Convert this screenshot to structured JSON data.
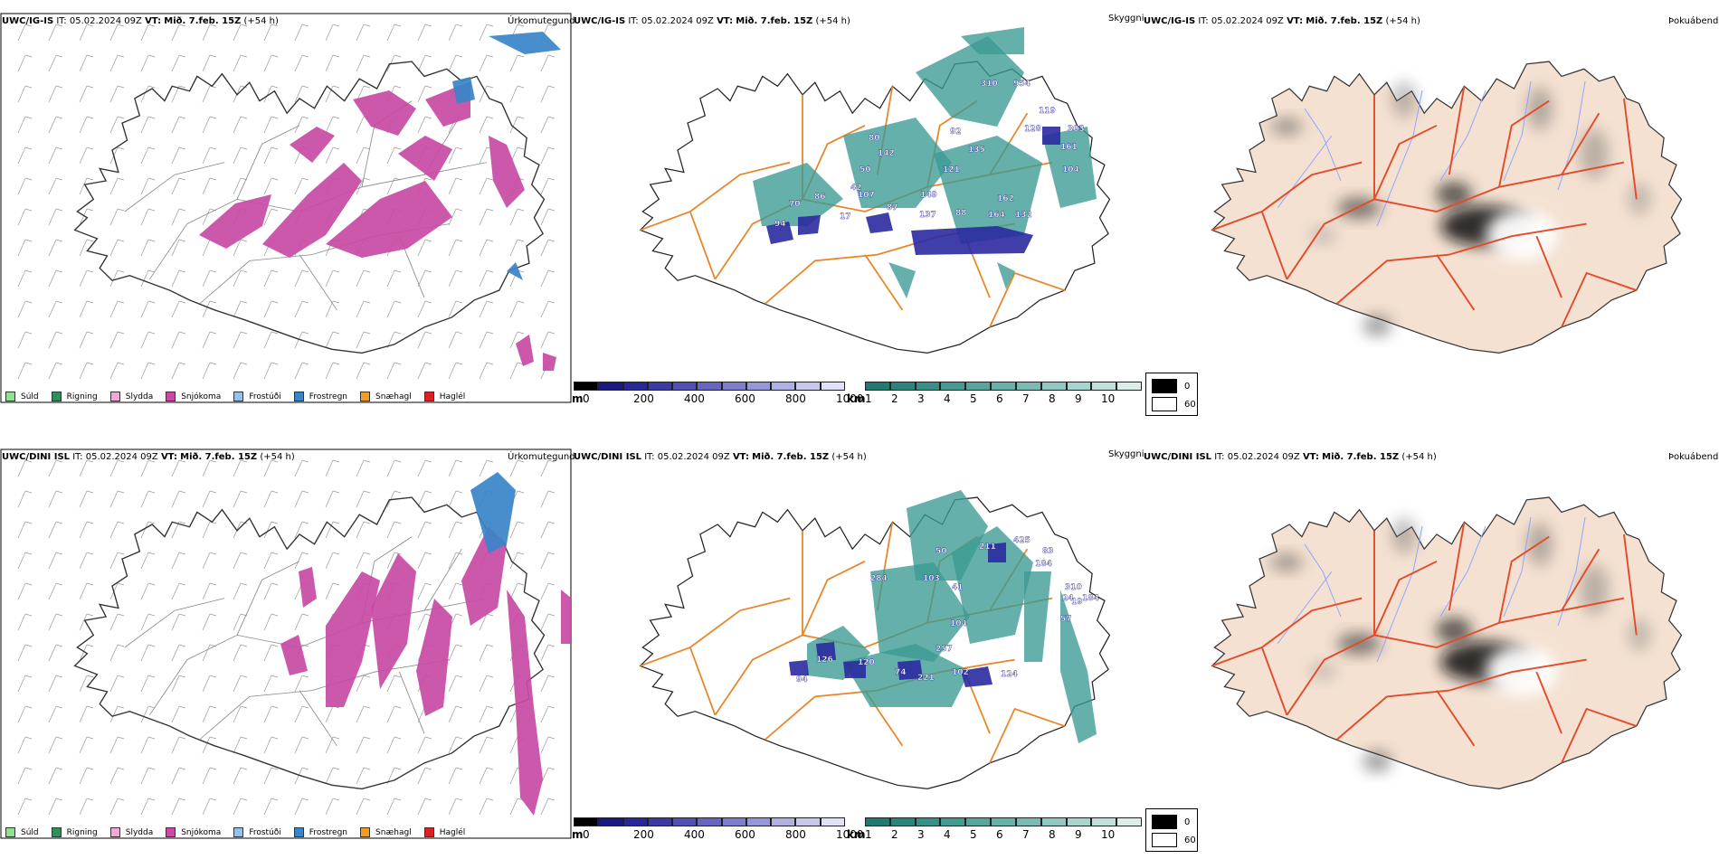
{
  "colors": {
    "precip_sea_outline": "#111111",
    "road_orange": "#e8872a",
    "road_red": "#e34b2a",
    "river_blue": "#8fa6ff",
    "land_beige": "#f4e1d1",
    "snow_magenta": "#c84aa4",
    "freezing_blue": "#3a84c8",
    "cloud_teal": "#3a9a92",
    "ceiling_navy": "#2b2aa0"
  },
  "rows": [
    {
      "model": "UWC/IG-IS",
      "it_label": "IT:",
      "it_value": "05.02.2024 09Z",
      "vt_label": "VT:",
      "vt_value": "Mið. 7.feb. 15Z",
      "lead": "(+54 h)",
      "ceiling_labels": [
        "310",
        "954",
        "119",
        "303",
        "128",
        "80",
        "142",
        "92",
        "135",
        "161",
        "121",
        "50",
        "42",
        "104",
        "70",
        "86",
        "107",
        "149",
        "162",
        "87",
        "137",
        "88",
        "164",
        "132",
        "94",
        "17"
      ],
      "ceiling_label_positions_note": ""
    },
    {
      "model": "UWC/DINI ISL",
      "it_label": "IT:",
      "it_value": "05.02.2024 09Z",
      "vt_label": "VT:",
      "vt_value": "Mið. 7.feb. 15Z",
      "lead": "(+54 h)",
      "ceiling_labels": [
        "211",
        "425",
        "83",
        "184",
        "50",
        "284",
        "103",
        "310",
        "24",
        "19",
        "184",
        "41",
        "57",
        "104",
        "257",
        "126",
        "120",
        "74",
        "221",
        "102",
        "124",
        "94"
      ]
    }
  ],
  "panel_titles": {
    "precip": "Úrkomutegund",
    "cloud": "Skyggni",
    "fog": "Þokuábendi"
  },
  "precip_legend": [
    {
      "label": "Súld",
      "color": "#8fe38f"
    },
    {
      "label": "Rigning",
      "color": "#2f8f5f"
    },
    {
      "label": "Slydda",
      "color": "#f2a9d6"
    },
    {
      "label": "Snjókoma",
      "color": "#c84aa4"
    },
    {
      "label": "Frostúði",
      "color": "#8fc3f0"
    },
    {
      "label": "Frostregn",
      "color": "#3a84c8"
    },
    {
      "label": "Snæhagl",
      "color": "#f0a020"
    },
    {
      "label": "Haglél",
      "color": "#e02020"
    }
  ],
  "ceiling_bar": {
    "unit": "m",
    "ticks": [
      "0",
      "200",
      "400",
      "600",
      "800",
      "1000"
    ],
    "colors": [
      "#000000",
      "#1a1a80",
      "#28289a",
      "#3a3aa8",
      "#4f4fb4",
      "#6666c0",
      "#7e7ecc",
      "#9797d8",
      "#b0b0e2",
      "#c8c8ec",
      "#e0e0f6"
    ]
  },
  "visibility_bar": {
    "unit": "km",
    "ticks": [
      "1",
      "2",
      "3",
      "4",
      "5",
      "6",
      "7",
      "8",
      "9",
      "10"
    ],
    "colors": [
      "#1f7a72",
      "#2a857d",
      "#369088",
      "#449b93",
      "#54a69e",
      "#66b1a9",
      "#7abcb5",
      "#90c8c1",
      "#a8d4ce",
      "#c0e0db",
      "#dbeeea"
    ]
  },
  "fog_legend": [
    {
      "label": "0",
      "color": "#000000"
    },
    {
      "label": "60",
      "color": "#ffffff"
    }
  ]
}
